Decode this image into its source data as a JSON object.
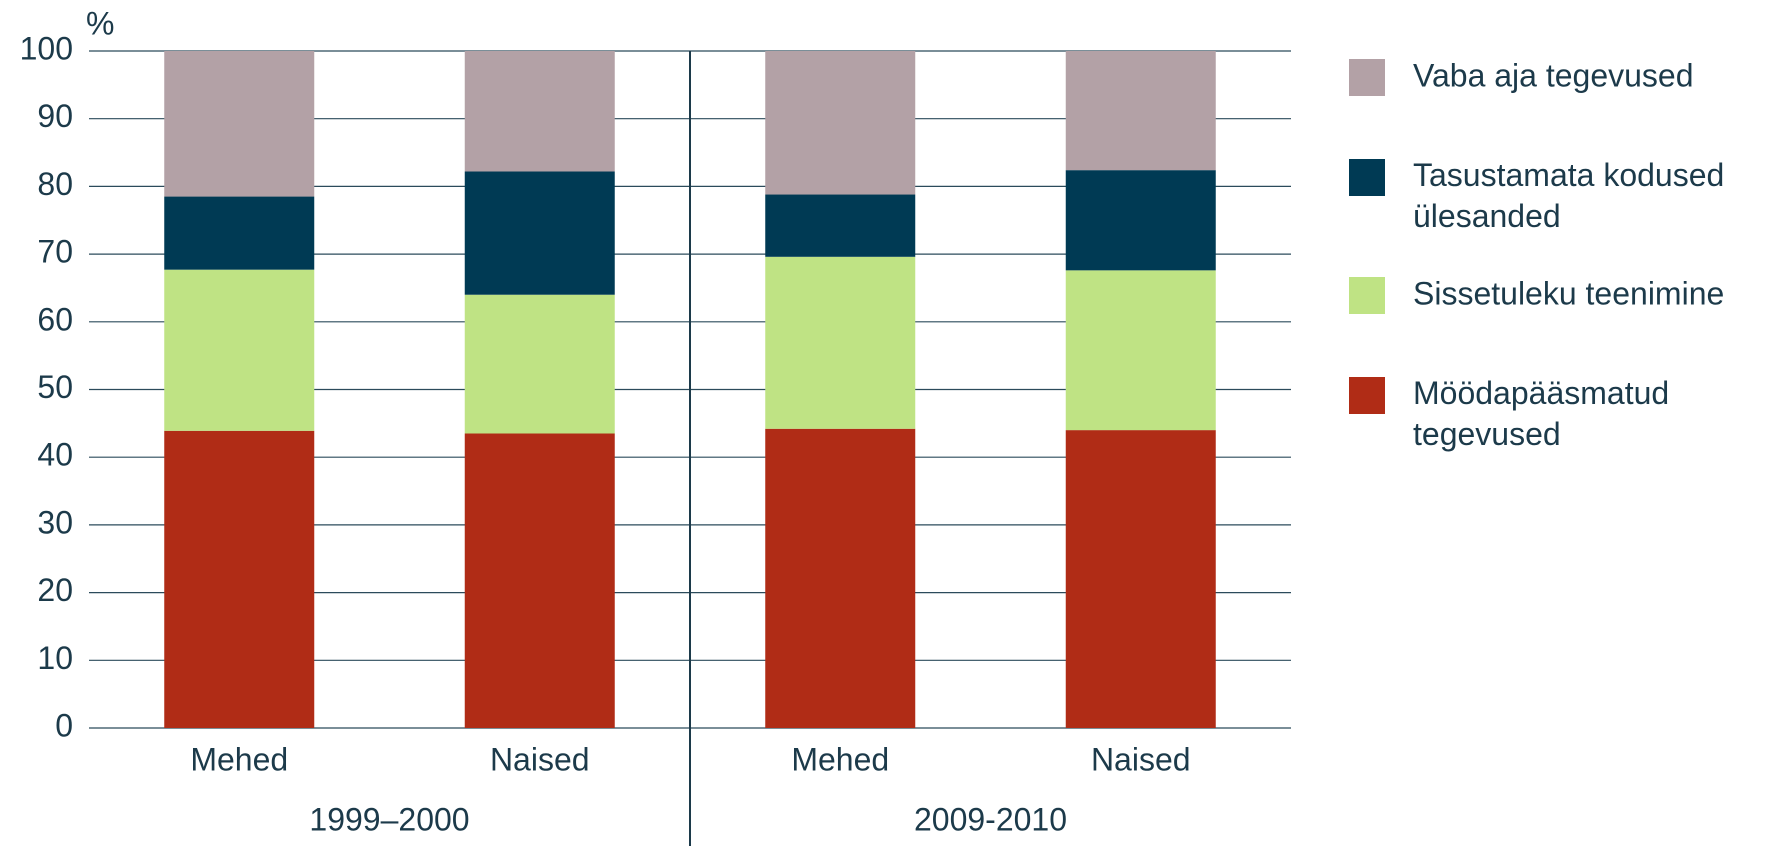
{
  "chart_data": {
    "type": "stacked_bar",
    "y_unit_label": "%",
    "categories": [
      "Mehed",
      "Naised",
      "Mehed",
      "Naised"
    ],
    "group_labels": [
      "1999–2000",
      "2009-2010"
    ],
    "series": [
      {
        "name": "Möödapääsmatud tegevused",
        "color": "#b02c16",
        "values": [
          43.9,
          43.5,
          44.2,
          44.0
        ]
      },
      {
        "name": "Sissetuleku teenimine",
        "color": "#bfe384",
        "values": [
          23.8,
          20.5,
          25.4,
          23.6
        ]
      },
      {
        "name": "Tasustamata kodused ülesanded",
        "color": "#003a54",
        "values": [
          10.8,
          18.2,
          9.2,
          14.8
        ]
      },
      {
        "name": "Vaba aja tegevused",
        "color": "#b3a1a6",
        "values": [
          21.5,
          17.8,
          21.2,
          17.6
        ]
      }
    ],
    "ylim": [
      0,
      100
    ],
    "yticks": [
      0,
      10,
      20,
      30,
      40,
      50,
      60,
      70,
      80,
      90,
      100
    ],
    "grid": true
  }
}
